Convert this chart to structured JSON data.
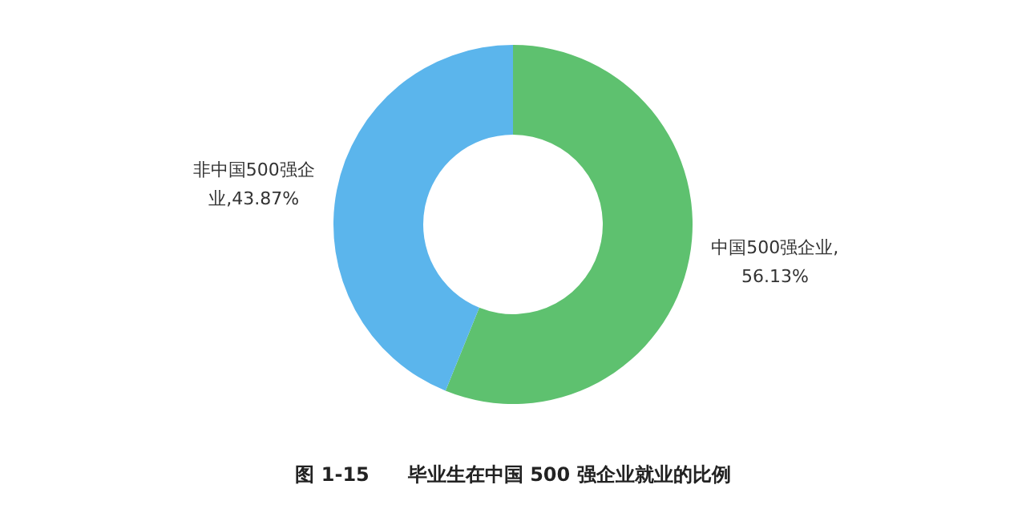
{
  "chart_data": {
    "type": "donut",
    "title": "图 1-15　　毕业生在中国 500 强企业就业的比例",
    "categories": [
      "中国500强企业",
      "非中国500强企业"
    ],
    "values": [
      56.13,
      43.87
    ],
    "colors": [
      "#5ec16f",
      "#5bb5ec"
    ],
    "value_labels": [
      ",56.13%",
      ",43.87%"
    ],
    "legend": false
  }
}
